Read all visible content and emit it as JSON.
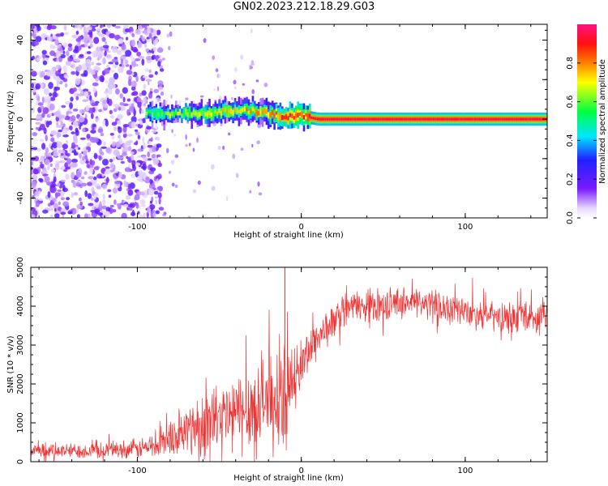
{
  "title": "GN02.2023.212.18.29.G03",
  "chart_data": [
    {
      "type": "heatmap",
      "xlabel": "Height of straight line (km)",
      "ylabel": "Frequency (Hz)",
      "xlim": [
        -165,
        150
      ],
      "ylim": [
        -50,
        48
      ],
      "xticks": [
        "-100",
        "0",
        "100"
      ],
      "yticks": [
        "-40",
        "-20",
        "0",
        "20",
        "40"
      ],
      "grid": false,
      "colorbar": {
        "label": "Normalized spectral amplitude",
        "range": [
          0,
          1
        ],
        "ticks": [
          "0.0",
          "0.2",
          "0.4",
          "0.6",
          "0.8"
        ],
        "colormap": "white-violet-blue-cyan-green-yellow-orange-red-magenta"
      },
      "structure": {
        "noise_region_x": [
          -165,
          -95
        ],
        "signal_ridge": [
          {
            "x": -95,
            "f": 3.0,
            "amp": 0.55
          },
          {
            "x": -80,
            "f": 2.5,
            "amp": 0.6
          },
          {
            "x": -60,
            "f": 3.0,
            "amp": 0.65
          },
          {
            "x": -40,
            "f": 4.5,
            "amp": 0.7
          },
          {
            "x": -25,
            "f": 4.0,
            "amp": 0.75
          },
          {
            "x": -12,
            "f": 1.0,
            "amp": 0.85
          },
          {
            "x": 0,
            "f": 1.5,
            "amp": 0.9
          },
          {
            "x": 10,
            "f": 0.0,
            "amp": 0.95
          },
          {
            "x": 150,
            "f": 0.0,
            "amp": 0.95
          }
        ]
      }
    },
    {
      "type": "line",
      "xlabel": "Height of straight line (km)",
      "ylabel": "SNR (10 * v/v)",
      "xlim": [
        -165,
        150
      ],
      "ylim": [
        0,
        5000
      ],
      "xticks": [
        "-100",
        "0",
        "100"
      ],
      "yticks": [
        "0",
        "1000",
        "2000",
        "3000",
        "4000",
        "5000"
      ],
      "grid": false,
      "color": "#ee3333",
      "series": [
        {
          "x": [
            -165,
            -140,
            -120,
            -100,
            -90,
            -80,
            -70,
            -60,
            -50,
            -40,
            -30,
            -20,
            -10,
            -5,
            0,
            5,
            10,
            15,
            20,
            25,
            30,
            40,
            50,
            60,
            70,
            80,
            90,
            100,
            110,
            120,
            130,
            140,
            150
          ],
          "y": [
            250,
            280,
            300,
            330,
            400,
            600,
            800,
            1000,
            1100,
            1200,
            1400,
            1600,
            1700,
            2000,
            2500,
            2900,
            3200,
            3400,
            3600,
            3850,
            4000,
            4000,
            4050,
            4100,
            4100,
            4050,
            3950,
            3850,
            3800,
            3700,
            3700,
            3700,
            3750
          ],
          "spread": [
            200,
            200,
            230,
            260,
            350,
            500,
            700,
            900,
            1000,
            1100,
            1200,
            1300,
            1300,
            1000,
            700,
            600,
            550,
            500,
            450,
            400,
            400,
            400,
            400,
            400,
            400,
            400,
            400,
            400,
            400,
            400,
            400,
            400,
            400
          ]
        }
      ]
    }
  ]
}
